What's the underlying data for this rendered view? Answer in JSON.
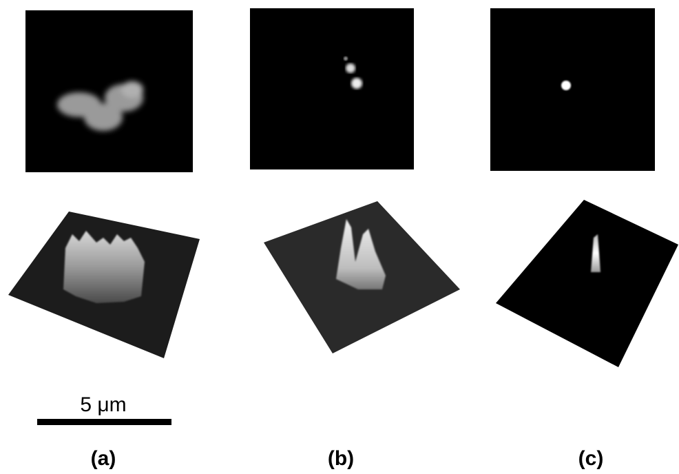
{
  "scale_bar": {
    "label": "5 μm"
  },
  "panels": [
    {
      "label": "(a)"
    },
    {
      "label": "(b)"
    },
    {
      "label": "(c)"
    }
  ]
}
